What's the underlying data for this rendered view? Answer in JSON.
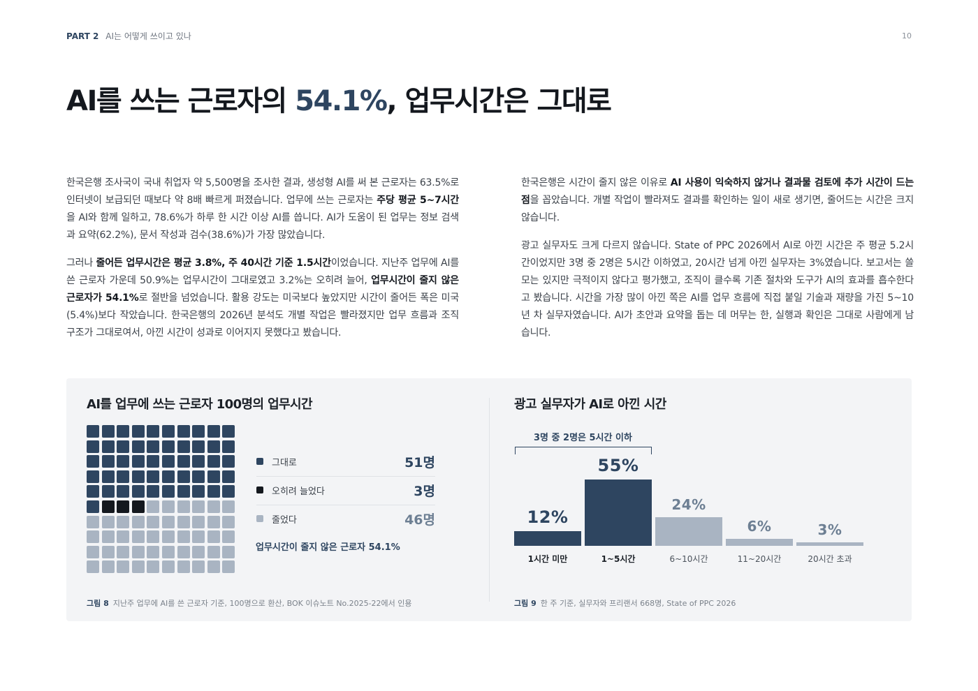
{
  "header": {
    "part": "PART 2",
    "chapter": "AI는 어떻게 쓰이고 있나",
    "page_number": "10"
  },
  "title": {
    "before": "AI를 쓰는 근로자의 ",
    "highlight": "54.1%",
    "after": ", 업무시간은 그대로"
  },
  "left_column": {
    "p1": [
      {
        "t": "한국은행 조사국이 국내 취업자 약 5,500명을 조사한 결과, 생성형 AI를 써 본 근로자는 63.5%로 인터넷이 보급되던 때보다 약 8배 빠르게 퍼졌습니다. 업무에 쓰는 근로자는 ",
        "b": false
      },
      {
        "t": "주당 평균 5~7시간",
        "b": true
      },
      {
        "t": "을 AI와 함께 일하고, 78.6%가 하루 한 시간 이상 AI를 씁니다. AI가 도움이 된 업무는 정보 검색과 요약(62.2%), 문서 작성과 검수(38.6%)가 가장 많았습니다.",
        "b": false
      }
    ],
    "p2": [
      {
        "t": "그러나 ",
        "b": false
      },
      {
        "t": "줄어든 업무시간은 평균 3.8%, 주 40시간 기준 1.5시간",
        "b": true
      },
      {
        "t": "이었습니다. 지난주 업무에 AI를 쓴 근로자 가운데 50.9%는 업무시간이 그대로였고 3.2%는 오히려 늘어, ",
        "b": false
      },
      {
        "t": "업무시간이 줄지 않은 근로자가 54.1%",
        "b": true
      },
      {
        "t": "로 절반을 넘었습니다. 활용 강도는 미국보다 높았지만 시간이 줄어든 폭은 미국(5.4%)보다 작았습니다. 한국은행의 2026년 분석도 개별 작업은 빨라졌지만 업무 흐름과 조직 구조가 그대로여서, 아낀 시간이 성과로 이어지지 못했다고 봤습니다.",
        "b": false
      }
    ]
  },
  "right_column": {
    "p1": [
      {
        "t": "한국은행은 시간이 줄지 않은 이유로 ",
        "b": false
      },
      {
        "t": "AI 사용이 익숙하지 않거나 결과물 검토에 추가 시간이 드는 점",
        "b": true
      },
      {
        "t": "을 꼽았습니다. 개별 작업이 빨라져도 결과를 확인하는 일이 새로 생기면, 줄어드는 시간은 크지 않습니다.",
        "b": false
      }
    ],
    "p2": [
      {
        "t": "광고 실무자도 크게 다르지 않습니다. State of PPC 2026에서 AI로 아낀 시간은 주 평균 5.2시간이었지만 3명 중 2명은 5시간 이하였고, 20시간 넘게 아낀 실무자는 3%였습니다. 보고서는 쓸모는 있지만 극적이지 않다고 평가했고, 조직이 클수록 기존 절차와 도구가 AI의 효과를 흡수한다고 봤습니다. 시간을 가장 많이 아낀 쪽은 AI를 업무 흐름에 직접 붙일 기술과 재량을 가진 5~10년 차 실무자였습니다. AI가 초안과 요약을 돕는 데 머무는 한, 실행과 확인은 그대로 사람에게 남습니다.",
        "b": false
      }
    ]
  },
  "figure8": {
    "title": "AI를 업무에 쓰는 근로자 100명의 업무시간",
    "legend": [
      {
        "label": "그대로",
        "value": "51명",
        "count": 51,
        "color": "#2e4560"
      },
      {
        "label": "오히려 늘었다",
        "value": "3명",
        "count": 3,
        "color": "#14181e"
      },
      {
        "label": "줄었다",
        "value": "46명",
        "count": 46,
        "color": "#a9b4c2"
      }
    ],
    "note": "업무시간이 줄지 않은 근로자 54.1%",
    "caption_label": "그림 8",
    "caption_text": "지난주 업무에 AI를 쓴 근로자 기준, 100명으로 환산, BOK 이슈노트 No.2025-22에서 인용"
  },
  "figure9": {
    "title": "광고 실무자가 AI로 아낀 시간",
    "bracket_label": "3명 중 2명은 5시간 이하",
    "caption_label": "그림 9",
    "caption_text": "한 주 기준, 실무자와 프리랜서 668명, State of PPC 2026"
  },
  "chart_data": [
    {
      "type": "bar",
      "title": "광고 실무자가 AI로 아낀 시간",
      "categories": [
        "1시간 미만",
        "1~5시간",
        "6~10시간",
        "11~20시간",
        "20시간 초과"
      ],
      "values": [
        12,
        55,
        24,
        6,
        3
      ],
      "value_labels": [
        "12%",
        "55%",
        "24%",
        "6%",
        "3%"
      ],
      "colors": [
        "#2e4560",
        "#2e4560",
        "#a9b4c2",
        "#a9b4c2",
        "#a9b4c2"
      ],
      "ylim": [
        0,
        55
      ],
      "grid": false
    }
  ]
}
